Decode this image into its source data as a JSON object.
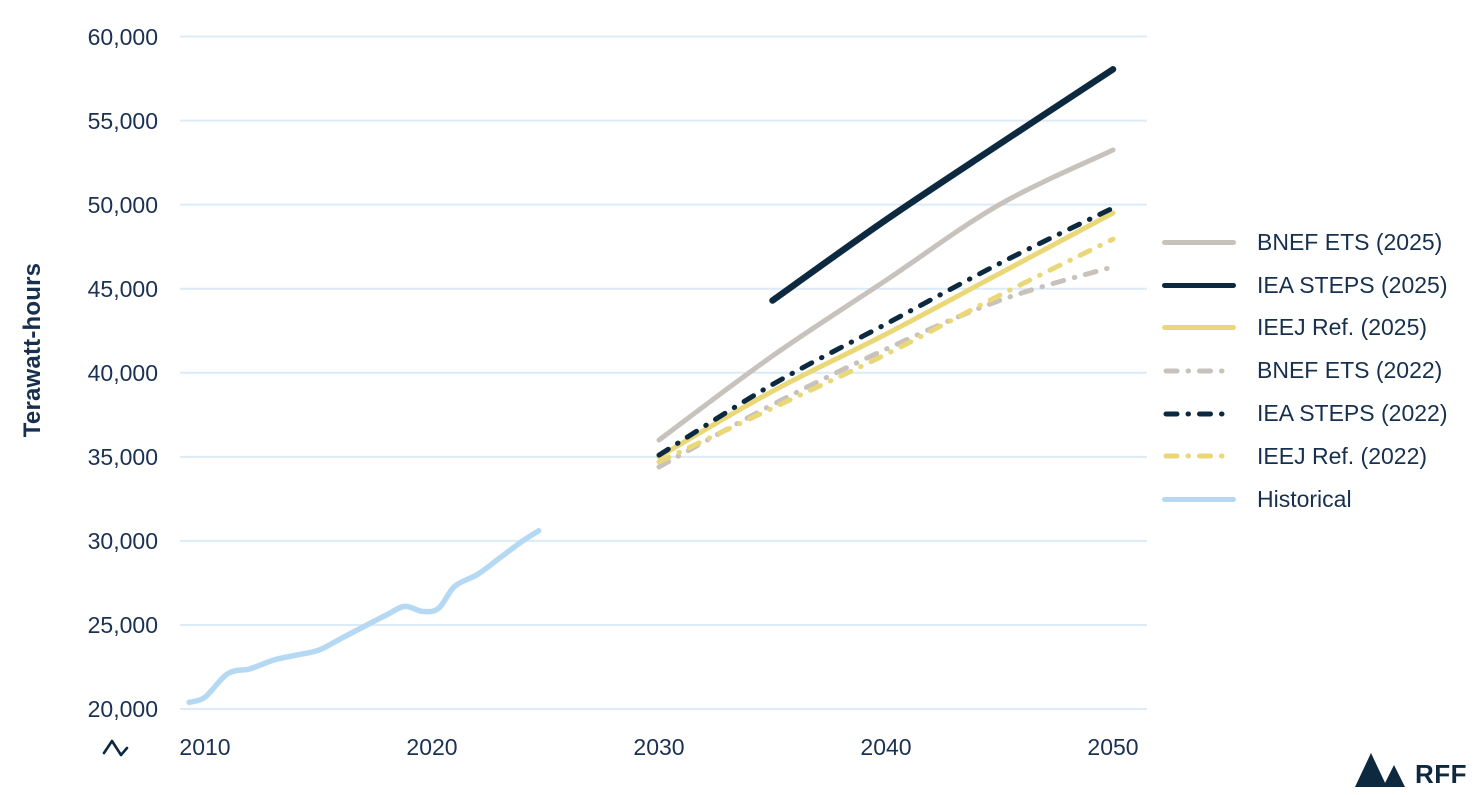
{
  "chart_data": {
    "type": "line",
    "title": "",
    "ylabel": "Terawatt-hours",
    "xlabel": "",
    "ylim": [
      20000,
      60000
    ],
    "xlim": [
      2008.5,
      2051.5
    ],
    "grid": "horizontal",
    "legend_position": "right",
    "axis_break_symbol": "∿",
    "y_ticks": [
      {
        "value": 60000,
        "label": "60,000"
      },
      {
        "value": 55000,
        "label": "55,000"
      },
      {
        "value": 50000,
        "label": "50,000"
      },
      {
        "value": 45000,
        "label": "45,000"
      },
      {
        "value": 40000,
        "label": "40,000"
      },
      {
        "value": 35000,
        "label": "35,000"
      },
      {
        "value": 30000,
        "label": "30,000"
      },
      {
        "value": 25000,
        "label": "25,000"
      },
      {
        "value": 20000,
        "label": "20,000"
      }
    ],
    "x_ticks": [
      {
        "value": 2010,
        "label": "2010"
      },
      {
        "value": 2020,
        "label": "2020"
      },
      {
        "value": 2030,
        "label": "2030"
      },
      {
        "value": 2040,
        "label": "2040"
      },
      {
        "value": 2050,
        "label": "2050"
      }
    ],
    "series": [
      {
        "id": "bnef-ets-2025",
        "name": "BNEF ETS (2025)",
        "style": "solid",
        "color": "#c8c2bc",
        "width": 5,
        "points": [
          [
            2030,
            36000
          ],
          [
            2035,
            41000
          ],
          [
            2040,
            45500
          ],
          [
            2045,
            50000
          ],
          [
            2050,
            53250
          ]
        ]
      },
      {
        "id": "iea-steps-2025",
        "name": "IEA STEPS (2025)",
        "style": "solid",
        "color": "#0c2940",
        "width": 6.5,
        "points": [
          [
            2035,
            44300
          ],
          [
            2040,
            49100
          ],
          [
            2045,
            53600
          ],
          [
            2050,
            58050
          ]
        ]
      },
      {
        "id": "ieej-ref-2025",
        "name": "IEEJ Ref. (2025)",
        "style": "solid",
        "color": "#ead878",
        "width": 5,
        "points": [
          [
            2030,
            35000
          ],
          [
            2035,
            38900
          ],
          [
            2040,
            42300
          ],
          [
            2045,
            45900
          ],
          [
            2050,
            49500
          ]
        ]
      },
      {
        "id": "bnef-ets-2022",
        "name": "BNEF ETS (2022)",
        "style": "dashdot",
        "color": "#c8c2bc",
        "width": 5,
        "points": [
          [
            2030,
            34400
          ],
          [
            2035,
            38100
          ],
          [
            2040,
            41400
          ],
          [
            2045,
            44300
          ],
          [
            2050,
            46300
          ]
        ]
      },
      {
        "id": "iea-steps-2022",
        "name": "IEA STEPS (2022)",
        "style": "dashdot",
        "color": "#0c2940",
        "width": 5,
        "points": [
          [
            2030,
            35100
          ],
          [
            2035,
            39300
          ],
          [
            2040,
            42900
          ],
          [
            2045,
            46500
          ],
          [
            2050,
            49800
          ]
        ]
      },
      {
        "id": "ieej-ref-2022",
        "name": "IEEJ Ref. (2022)",
        "style": "dashdot",
        "color": "#ead878",
        "width": 5,
        "points": [
          [
            2030,
            34700
          ],
          [
            2035,
            37900
          ],
          [
            2040,
            41100
          ],
          [
            2045,
            44600
          ],
          [
            2050,
            47950
          ]
        ]
      },
      {
        "id": "historical",
        "name": "Historical",
        "style": "solid",
        "color": "#b5d9f3",
        "width": 5.5,
        "points": [
          [
            2009.3,
            20400
          ],
          [
            2010,
            20700
          ],
          [
            2011,
            22100
          ],
          [
            2012,
            22400
          ],
          [
            2013,
            22900
          ],
          [
            2014,
            23200
          ],
          [
            2015,
            23500
          ],
          [
            2016,
            24200
          ],
          [
            2017,
            24900
          ],
          [
            2018,
            25600
          ],
          [
            2018.8,
            26100
          ],
          [
            2019.6,
            25800
          ],
          [
            2020.3,
            26000
          ],
          [
            2021,
            27300
          ],
          [
            2022,
            28000
          ],
          [
            2023,
            29000
          ],
          [
            2024,
            30000
          ],
          [
            2024.7,
            30600
          ]
        ]
      }
    ],
    "colors": {
      "grid": "#dcebf7",
      "axis_text": "#1b3152",
      "navy": "#0c2940",
      "gray": "#c8c2bc",
      "yellow": "#ead878",
      "light_blue": "#b5d9f3"
    }
  },
  "logo": {
    "text": "RFF"
  }
}
